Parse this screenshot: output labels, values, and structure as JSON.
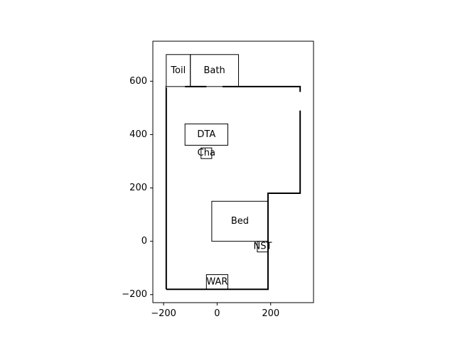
{
  "chart_data": {
    "type": "floor-plan",
    "xlim": [
      -240,
      360
    ],
    "ylim": [
      -230,
      750
    ],
    "x_ticks": [
      {
        "value": -200,
        "label": "−200"
      },
      {
        "value": 0,
        "label": "0"
      },
      {
        "value": 200,
        "label": "200"
      }
    ],
    "y_ticks": [
      {
        "value": -200,
        "label": "−200"
      },
      {
        "value": 0,
        "label": "0"
      },
      {
        "value": 200,
        "label": "200"
      },
      {
        "value": 400,
        "label": "400"
      },
      {
        "value": 600,
        "label": "600"
      }
    ],
    "walls": [
      [
        -190,
        -180
      ],
      [
        -190,
        580
      ],
      [
        310,
        580
      ],
      [
        310,
        180
      ],
      [
        190,
        180
      ],
      [
        190,
        -180
      ],
      [
        -190,
        -180
      ]
    ],
    "doorways": [
      {
        "from": [
          -190,
          580
        ],
        "to": [
          -120,
          580
        ]
      },
      {
        "from": [
          -40,
          580
        ],
        "to": [
          20,
          580
        ]
      },
      {
        "from": [
          310,
          490
        ],
        "to": [
          310,
          560
        ]
      }
    ],
    "rooms": [
      {
        "id": "toilet",
        "label": "Toil",
        "x0": -190,
        "y0": 580,
        "x1": -100,
        "y1": 700
      },
      {
        "id": "bath",
        "label": "Bath",
        "x0": -100,
        "y0": 580,
        "x1": 80,
        "y1": 700
      }
    ],
    "furniture": [
      {
        "id": "dta",
        "label": "DTA",
        "x0": -120,
        "y0": 360,
        "x1": 40,
        "y1": 440
      },
      {
        "id": "chair",
        "label": "Cha",
        "x0": -60,
        "y0": 310,
        "x1": -20,
        "y1": 350
      },
      {
        "id": "bed",
        "label": "Bed",
        "x0": -20,
        "y0": 0,
        "x1": 190,
        "y1": 150
      },
      {
        "id": "nightstand",
        "label": "NST",
        "x0": 150,
        "y0": -40,
        "x1": 190,
        "y1": 0
      },
      {
        "id": "wardrobe",
        "label": "WAR",
        "x0": -40,
        "y0": -180,
        "x1": 40,
        "y1": -125
      }
    ]
  }
}
